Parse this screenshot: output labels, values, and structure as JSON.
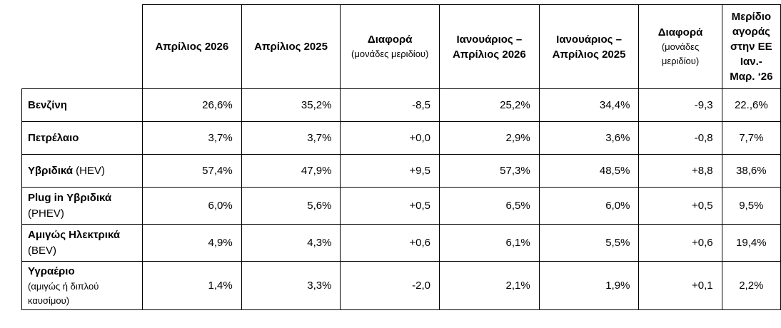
{
  "headers": [
    {
      "main": "Απρίλιος 2026",
      "sub": ""
    },
    {
      "main": "Απρίλιος 2025",
      "sub": ""
    },
    {
      "main": "Διαφορά",
      "sub": "(μονάδες μεριδίου)"
    },
    {
      "main": "Ιανουάριος – Απρίλιος 2026",
      "sub": ""
    },
    {
      "main": "Ιανουάριος – Απρίλιος 2025",
      "sub": ""
    },
    {
      "main": "Διαφορά",
      "sub": "(μονάδες μεριδίου)"
    },
    {
      "main": "Μερίδιο αγοράς στην ΕΕ Ιαν.- Μαρ. ‘26",
      "sub": ""
    }
  ],
  "rows": [
    {
      "label": "Βενζίνη",
      "label_extra": "",
      "values": [
        "26,6%",
        "35,2%",
        "-8,5",
        "25,2%",
        "34,4%",
        "-9,3",
        "22.,6%"
      ]
    },
    {
      "label": "Πετρέλαιο",
      "label_extra": "",
      "values": [
        "3,7%",
        "3,7%",
        "+0,0",
        "2,9%",
        "3,6%",
        "-0,8",
        "7,7%"
      ]
    },
    {
      "label": "Υβριδικά",
      "label_extra": "(HEV)",
      "values": [
        "57,4%",
        "47,9%",
        "+9,5",
        "57,3%",
        "48,5%",
        "+8,8",
        "38,6%"
      ]
    },
    {
      "label": "Plug in Υβριδικά",
      "label_extra": "(PHEV)",
      "values": [
        "6,0%",
        "5,6%",
        "+0,5",
        "6,5%",
        "6,0%",
        "+0,5",
        "9,5%"
      ]
    },
    {
      "label": "Αμιγώς Ηλεκτρικά",
      "label_extra": "(BEV)",
      "values": [
        "4,9%",
        "4,3%",
        "+0,6",
        "6,1%",
        "5,5%",
        "+0,6",
        "19,4%"
      ]
    },
    {
      "label": "Υγραέριο",
      "label_extra": "(αμιγώς ή διπλού καυσίμου)",
      "values": [
        "1,4%",
        "3,3%",
        "-2,0",
        "2,1%",
        "1,9%",
        "+0,1",
        "2,2%"
      ]
    }
  ]
}
